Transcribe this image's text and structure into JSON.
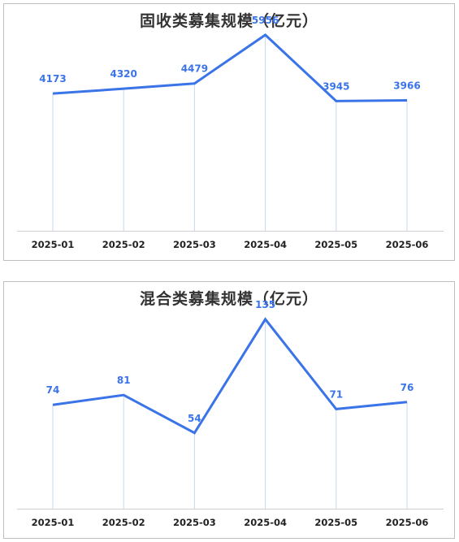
{
  "colors": {
    "line": "#3b74e8",
    "drop": "#c9d8f2",
    "axis": "#cfcfcf"
  },
  "chart_data": [
    {
      "type": "line",
      "title": "固收类募集规模（亿元）",
      "categories": [
        "2025-01",
        "2025-02",
        "2025-03",
        "2025-04",
        "2025-05",
        "2025-06"
      ],
      "values": [
        4173,
        4320,
        4479,
        5956,
        3945,
        3966
      ],
      "ylim": [
        0,
        6400
      ],
      "grid": false,
      "data_labels": true
    },
    {
      "type": "line",
      "title": "混合类募集规模（亿元）",
      "categories": [
        "2025-01",
        "2025-02",
        "2025-03",
        "2025-04",
        "2025-05",
        "2025-06"
      ],
      "values": [
        74,
        81,
        54,
        135,
        71,
        76
      ],
      "ylim": [
        0,
        150
      ],
      "grid": false,
      "data_labels": true
    }
  ]
}
